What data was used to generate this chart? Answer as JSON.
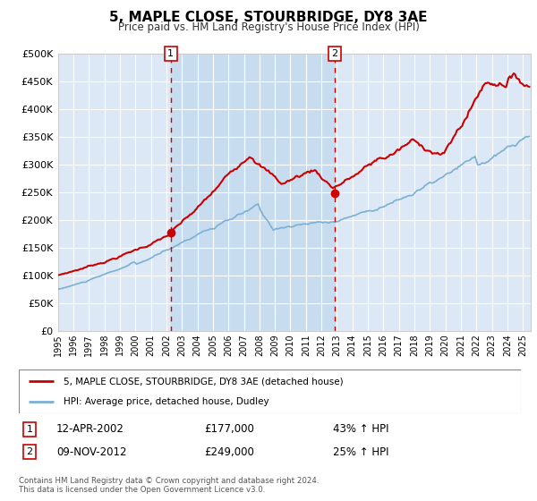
{
  "title": "5, MAPLE CLOSE, STOURBRIDGE, DY8 3AE",
  "subtitle": "Price paid vs. HM Land Registry's House Price Index (HPI)",
  "ylim": [
    0,
    500000
  ],
  "yticks": [
    0,
    50000,
    100000,
    150000,
    200000,
    250000,
    300000,
    350000,
    400000,
    450000,
    500000
  ],
  "xlim_start": 1995.0,
  "xlim_end": 2025.5,
  "fig_bg_color": "#ffffff",
  "plot_bg_color": "#dce8f5",
  "grid_color": "#ffffff",
  "red_line_color": "#cc0000",
  "blue_line_color": "#7ab0d4",
  "vline_color": "#cc0000",
  "shade_color": "#c8dcf0",
  "marker1_x": 2002.28,
  "marker1_y": 177000,
  "marker2_x": 2012.86,
  "marker2_y": 249000,
  "label1_date": "12-APR-2002",
  "label1_price": "£177,000",
  "label1_hpi": "43% ↑ HPI",
  "label2_date": "09-NOV-2012",
  "label2_price": "£249,000",
  "label2_hpi": "25% ↑ HPI",
  "legend_label1": "5, MAPLE CLOSE, STOURBRIDGE, DY8 3AE (detached house)",
  "legend_label2": "HPI: Average price, detached house, Dudley",
  "footer1": "Contains HM Land Registry data © Crown copyright and database right 2024.",
  "footer2": "This data is licensed under the Open Government Licence v3.0."
}
